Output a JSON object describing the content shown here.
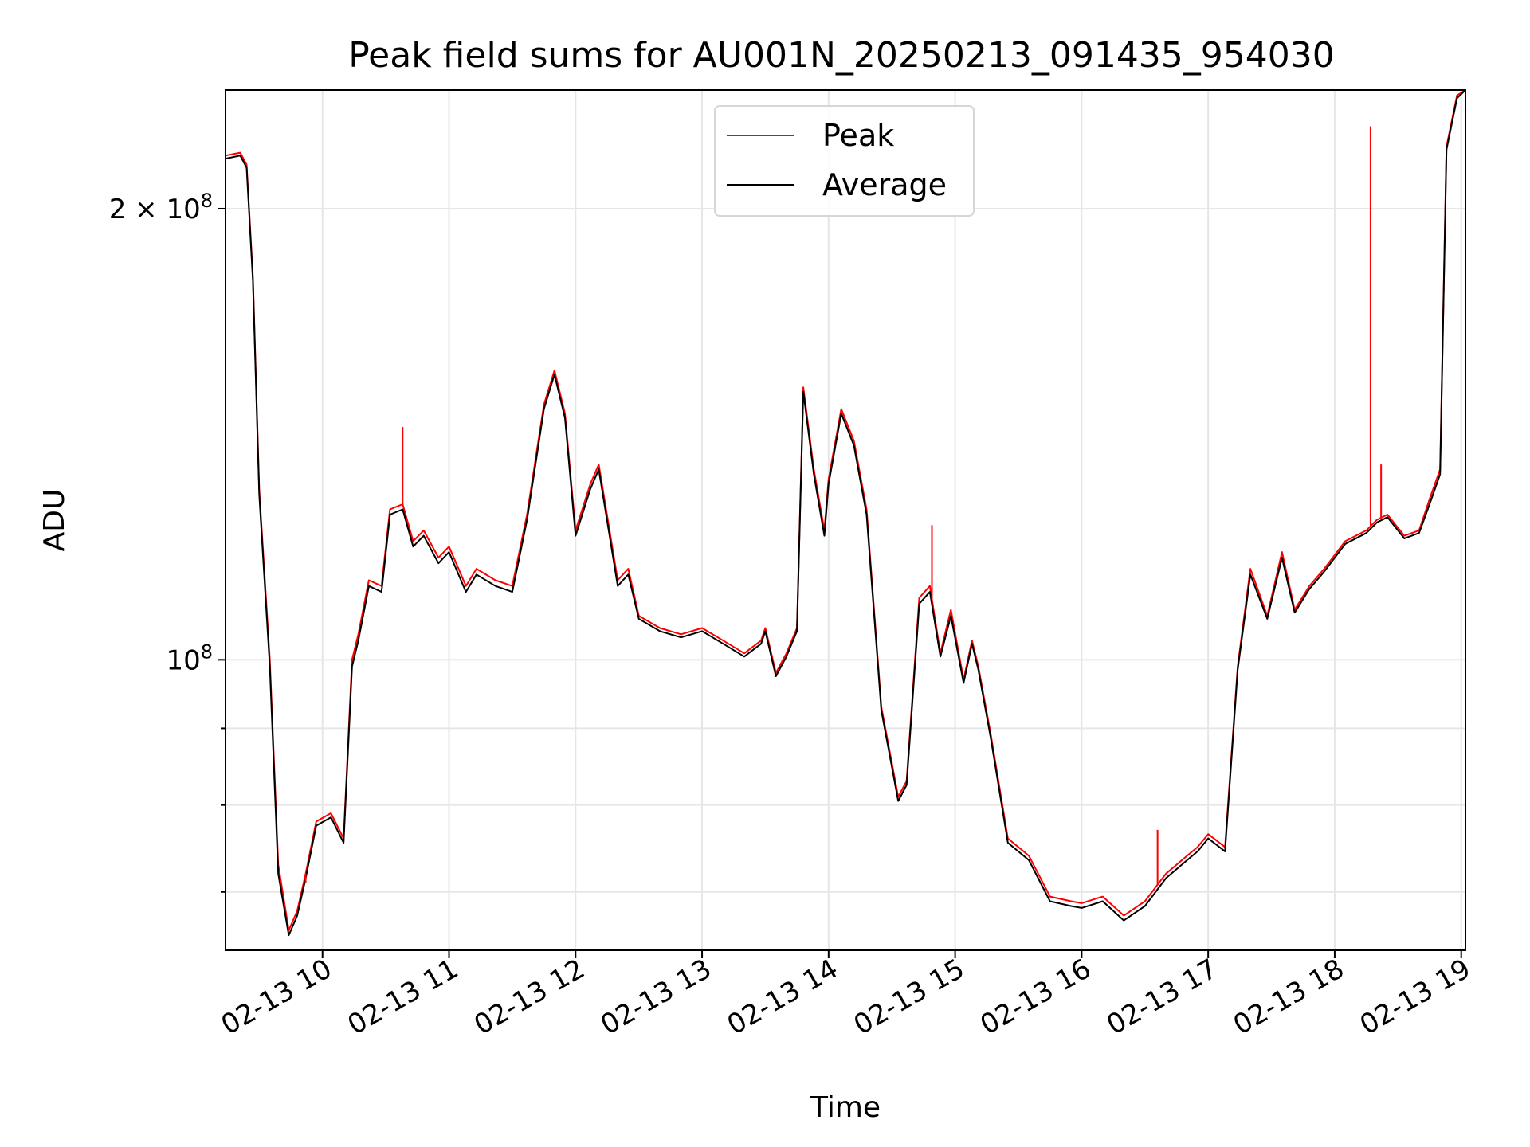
{
  "chart_data": {
    "type": "line",
    "title": "Peak field sums for AU001N_20250213_091435_954030",
    "xlabel": "Time",
    "ylabel": "ADU",
    "yscale": "log",
    "xlim": [
      "2025-02-13 09:14",
      "2025-02-13 19:02"
    ],
    "ylim": [
      64000000,
      240000000
    ],
    "grid": true,
    "legend_position": "top-center",
    "x_tick_labels": [
      "02-13 10",
      "02-13 11",
      "02-13 12",
      "02-13 13",
      "02-13 14",
      "02-13 15",
      "02-13 16",
      "02-13 17",
      "02-13 18",
      "02-13 19"
    ],
    "y_tick_labels": [
      {
        "value": 100000000,
        "base": "10",
        "exp": "8"
      },
      {
        "value": 200000000,
        "base": "2 × 10",
        "exp": "8"
      }
    ],
    "y_minor_ticks": [
      70000000,
      80000000,
      90000000
    ],
    "x": [
      "2025-02-13 09:14",
      "2025-02-13 09:21",
      "2025-02-13 09:24",
      "2025-02-13 09:27",
      "2025-02-13 09:30",
      "2025-02-13 09:35",
      "2025-02-13 09:39",
      "2025-02-13 09:44",
      "2025-02-13 09:48",
      "2025-02-13 09:52",
      "2025-02-13 09:57",
      "2025-02-13 10:04",
      "2025-02-13 10:10",
      "2025-02-13 10:14",
      "2025-02-13 10:17",
      "2025-02-13 10:22",
      "2025-02-13 10:28",
      "2025-02-13 10:32",
      "2025-02-13 10:38",
      "2025-02-13 10:43",
      "2025-02-13 10:48",
      "2025-02-13 10:55",
      "2025-02-13 11:00",
      "2025-02-13 11:08",
      "2025-02-13 11:13",
      "2025-02-13 11:22",
      "2025-02-13 11:30",
      "2025-02-13 11:37",
      "2025-02-13 11:45",
      "2025-02-13 11:50",
      "2025-02-13 11:55",
      "2025-02-13 12:00",
      "2025-02-13 12:07",
      "2025-02-13 12:11",
      "2025-02-13 12:20",
      "2025-02-13 12:25",
      "2025-02-13 12:30",
      "2025-02-13 12:40",
      "2025-02-13 12:50",
      "2025-02-13 13:00",
      "2025-02-13 13:10",
      "2025-02-13 13:20",
      "2025-02-13 13:28",
      "2025-02-13 13:30",
      "2025-02-13 13:35",
      "2025-02-13 13:40",
      "2025-02-13 13:45",
      "2025-02-13 13:48",
      "2025-02-13 13:53",
      "2025-02-13 13:58",
      "2025-02-13 14:00",
      "2025-02-13 14:06",
      "2025-02-13 14:12",
      "2025-02-13 14:18",
      "2025-02-13 14:25",
      "2025-02-13 14:33",
      "2025-02-13 14:37",
      "2025-02-13 14:43",
      "2025-02-13 14:48",
      "2025-02-13 14:53",
      "2025-02-13 14:58",
      "2025-02-13 15:04",
      "2025-02-13 15:08",
      "2025-02-13 15:11",
      "2025-02-13 15:17",
      "2025-02-13 15:25",
      "2025-02-13 15:35",
      "2025-02-13 15:45",
      "2025-02-13 15:55",
      "2025-02-13 16:00",
      "2025-02-13 16:10",
      "2025-02-13 16:20",
      "2025-02-13 16:30",
      "2025-02-13 16:40",
      "2025-02-13 16:50",
      "2025-02-13 16:55",
      "2025-02-13 17:00",
      "2025-02-13 17:08",
      "2025-02-13 17:14",
      "2025-02-13 17:20",
      "2025-02-13 17:28",
      "2025-02-13 17:35",
      "2025-02-13 17:41",
      "2025-02-13 17:48",
      "2025-02-13 17:55",
      "2025-02-13 18:05",
      "2025-02-13 18:15",
      "2025-02-13 18:20",
      "2025-02-13 18:25",
      "2025-02-13 18:33",
      "2025-02-13 18:40",
      "2025-02-13 18:45",
      "2025-02-13 18:50",
      "2025-02-13 18:53",
      "2025-02-13 18:58",
      "2025-02-13 19:02"
    ],
    "series": [
      {
        "name": "Peak",
        "color": "#ff0000",
        "values": [
          217000000,
          218000000,
          214000000,
          180000000,
          130000000,
          100000000,
          73000000,
          66000000,
          68000000,
          72000000,
          78000000,
          79000000,
          76000000,
          100000000,
          104000000,
          113000000,
          112000000,
          126000000,
          127000000,
          120000000,
          122000000,
          117000000,
          119000000,
          112000000,
          115000000,
          113000000,
          112000000,
          125000000,
          148000000,
          156000000,
          146000000,
          122000000,
          131000000,
          135000000,
          113000000,
          115000000,
          107000000,
          105000000,
          104000000,
          105000000,
          103000000,
          101000000,
          103000000,
          105000000,
          98000000,
          101000000,
          105000000,
          152000000,
          134000000,
          122000000,
          132000000,
          147000000,
          140000000,
          126000000,
          93000000,
          81000000,
          83000000,
          110000000,
          112000000,
          101000000,
          108000000,
          97000000,
          103000000,
          99000000,
          89000000,
          76000000,
          74000000,
          69500000,
          69000000,
          68800000,
          69500000,
          67500000,
          69000000,
          72000000,
          74000000,
          75000000,
          76500000,
          75000000,
          99000000,
          115000000,
          107000000,
          118000000,
          108000000,
          112000000,
          115000000,
          120000000,
          122000000,
          124000000,
          125000000,
          121000000,
          122000000,
          128000000,
          134000000,
          220000000,
          238000000,
          240000000
        ]
      },
      {
        "name": "Average",
        "color": "#000000",
        "values": [
          216000000,
          217000000,
          213000000,
          179000000,
          129000000,
          99000000,
          72000000,
          65500000,
          67500000,
          71500000,
          77500000,
          78500000,
          75500000,
          99000000,
          103000000,
          112000000,
          111000000,
          125000000,
          126000000,
          119000000,
          121000000,
          116000000,
          118000000,
          111000000,
          114000000,
          112000000,
          111000000,
          124000000,
          147000000,
          155000000,
          145000000,
          121000000,
          130000000,
          134000000,
          112000000,
          114000000,
          106500000,
          104500000,
          103500000,
          104500000,
          102500000,
          100500000,
          102500000,
          104500000,
          97500000,
          100500000,
          104500000,
          151000000,
          133000000,
          121000000,
          131000000,
          146000000,
          139000000,
          125000000,
          92500000,
          80500000,
          82500000,
          109000000,
          111000000,
          100500000,
          107000000,
          96500000,
          102500000,
          98500000,
          88500000,
          75500000,
          73500000,
          69000000,
          68500000,
          68300000,
          69000000,
          67000000,
          68500000,
          71500000,
          73500000,
          74500000,
          76000000,
          74500000,
          98500000,
          114000000,
          106500000,
          117000000,
          107500000,
          111500000,
          114500000,
          119500000,
          121500000,
          123500000,
          124500000,
          120500000,
          121500000,
          127000000,
          133000000,
          219000000,
          237000000,
          240000000
        ]
      }
    ],
    "spikes": [
      {
        "series": "Peak",
        "x": "2025-02-13 10:38",
        "value": 143000000
      },
      {
        "series": "Peak",
        "x": "2025-02-13 14:49",
        "value": 123000000
      },
      {
        "series": "Peak",
        "x": "2025-02-13 18:17",
        "value": 227000000
      },
      {
        "series": "Peak",
        "x": "2025-02-13 18:22",
        "value": 135000000
      },
      {
        "series": "Peak",
        "x": "2025-02-13 16:36",
        "value": 77000000
      },
      {
        "series": "Peak",
        "x": "2025-02-13 09:52",
        "value": 71000000
      }
    ]
  }
}
